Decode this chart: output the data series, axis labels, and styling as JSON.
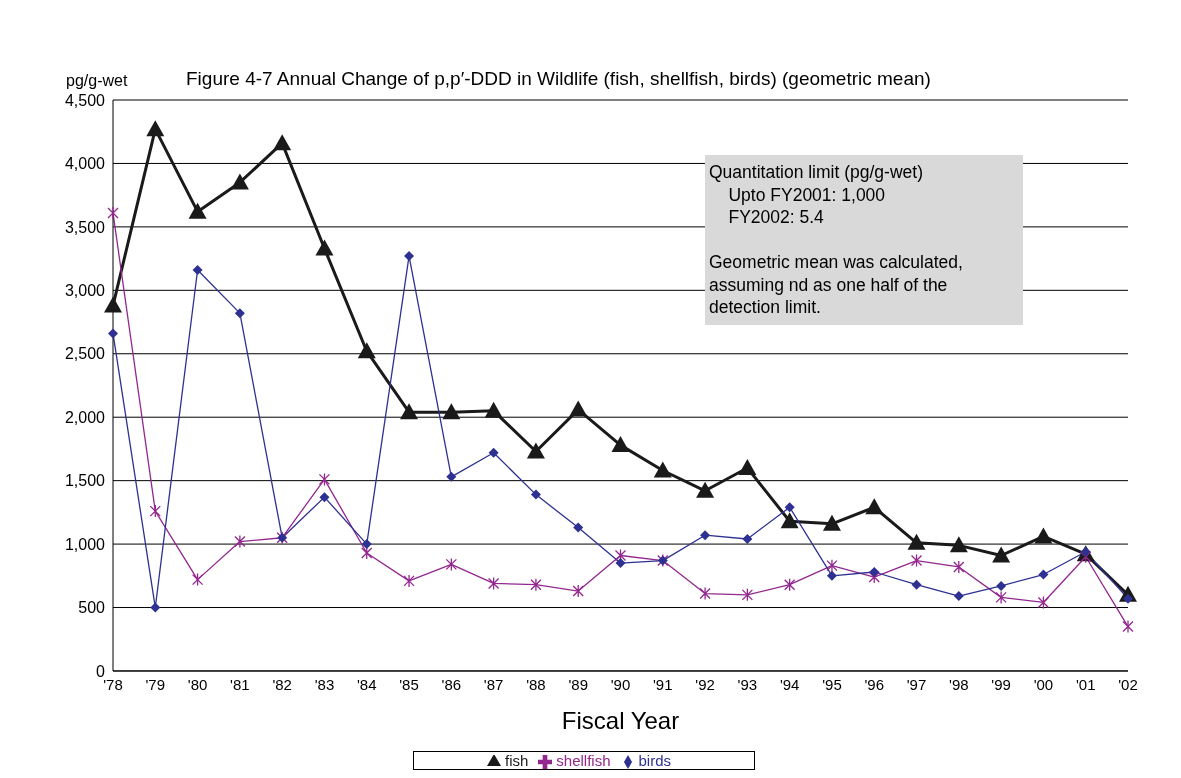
{
  "chart_data": {
    "type": "line",
    "title": "Figure 4-7  Annual Change of p,p′-DDD in Wildlife (fish, shellfish, birds) (geometric mean)",
    "ylabel": "pg/g-wet",
    "xlabel": "Fiscal Year",
    "categories": [
      "'78",
      "'79",
      "'80",
      "'81",
      "'82",
      "'83",
      "'84",
      "'85",
      "'86",
      "'87",
      "'88",
      "'89",
      "'90",
      "'91",
      "'92",
      "'93",
      "'94",
      "'95",
      "'96",
      "'97",
      "'98",
      "'99",
      "'00",
      "'01",
      "'02"
    ],
    "series": [
      {
        "name": "fish",
        "color": "#1a1a1a",
        "marker": "triangle",
        "values": [
          2880,
          4270,
          3620,
          3850,
          4160,
          3330,
          2520,
          2040,
          2040,
          2050,
          1730,
          2060,
          1780,
          1580,
          1420,
          1600,
          1180,
          1160,
          1290,
          1010,
          990,
          910,
          1060,
          920,
          600
        ]
      },
      {
        "name": "shellfish",
        "color": "#93278f",
        "marker": "cross",
        "values": [
          3610,
          1260,
          720,
          1020,
          1050,
          1510,
          930,
          710,
          840,
          690,
          680,
          630,
          910,
          870,
          610,
          600,
          680,
          830,
          740,
          870,
          820,
          580,
          540,
          900,
          350
        ]
      },
      {
        "name": "birds",
        "color": "#2e3192",
        "marker": "diamond",
        "values": [
          2660,
          500,
          3160,
          2820,
          1050,
          1370,
          1000,
          3270,
          1530,
          1720,
          1390,
          1130,
          850,
          870,
          1070,
          1040,
          1290,
          750,
          780,
          680,
          590,
          670,
          760,
          940,
          570
        ]
      }
    ],
    "ylim": [
      0,
      4500
    ],
    "yticks": [
      {
        "value": 0,
        "label": "0"
      },
      {
        "value": 500,
        "label": "500"
      },
      {
        "value": 1000,
        "label": "1,000"
      },
      {
        "value": 1500,
        "label": "1,500"
      },
      {
        "value": 2000,
        "label": "2,000"
      },
      {
        "value": 2500,
        "label": "2,500"
      },
      {
        "value": 3000,
        "label": "3,000"
      },
      {
        "value": 3500,
        "label": "3,500"
      },
      {
        "value": 4000,
        "label": "4,000"
      },
      {
        "value": 4500,
        "label": "4,500"
      }
    ],
    "grid": "y",
    "legend": "bottom",
    "line_style": "solid",
    "annotations": [
      "Quantitation limit (pg/g-wet)\n    Upto FY2001: 1,000\n    FY2002: 5.4\n\nGeometric mean was calculated,\nassuming nd as one half of the\ndetection limit."
    ]
  }
}
